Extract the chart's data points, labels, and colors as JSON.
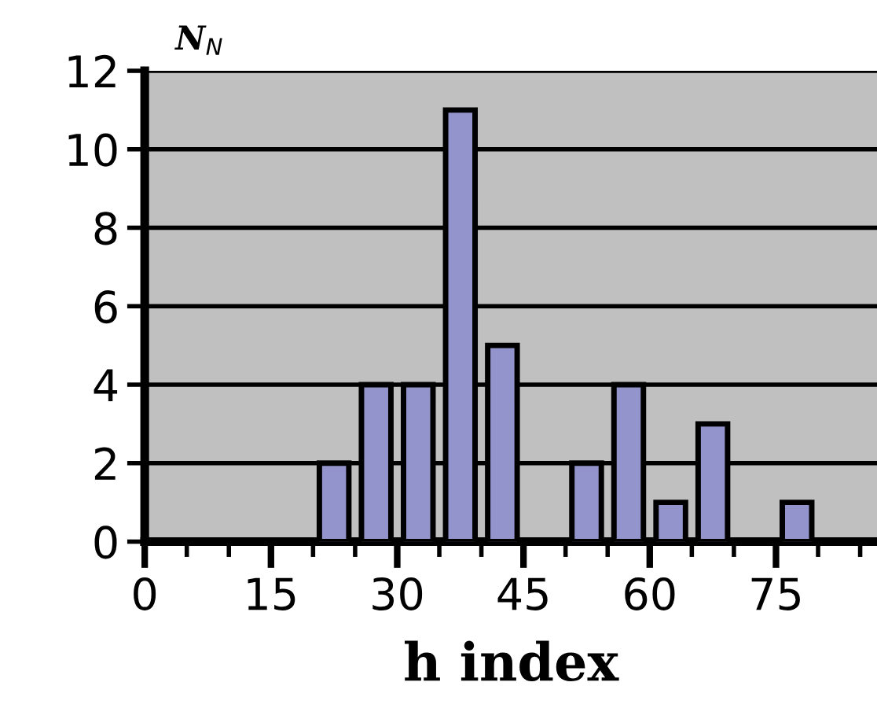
{
  "chart_data": {
    "type": "histogram",
    "xlabel": "h index",
    "ylabel": "N$_{N}$",
    "bins": [
      20,
      25,
      30,
      35,
      40,
      45,
      50,
      55,
      60,
      65,
      70,
      75,
      80
    ],
    "values": [
      2,
      4,
      4,
      11,
      5,
      0,
      2,
      4,
      1,
      3,
      0,
      1
    ],
    "color": "#9494cc",
    "xlim": [
      0,
      87
    ],
    "xticks": [
      0,
      {
        "value": 5,
        "label": null
      },
      {
        "value": 10,
        "label": null
      },
      15,
      {
        "value": 20,
        "label": null
      },
      {
        "value": 25,
        "label": null
      },
      30,
      {
        "value": 35,
        "label": null
      },
      {
        "value": 40,
        "label": null
      },
      45,
      {
        "value": 50,
        "label": null
      },
      {
        "value": 55,
        "label": null
      },
      60,
      {
        "value": 65,
        "label": null
      },
      {
        "value": 70,
        "label": null
      },
      75,
      {
        "value": 80,
        "label": null
      },
      {
        "value": 85,
        "label": null
      }
    ],
    "ylim": [
      0,
      12
    ],
    "yticks": [
      0,
      2,
      4,
      6,
      8,
      10,
      12
    ],
    "grid": "y"
  }
}
